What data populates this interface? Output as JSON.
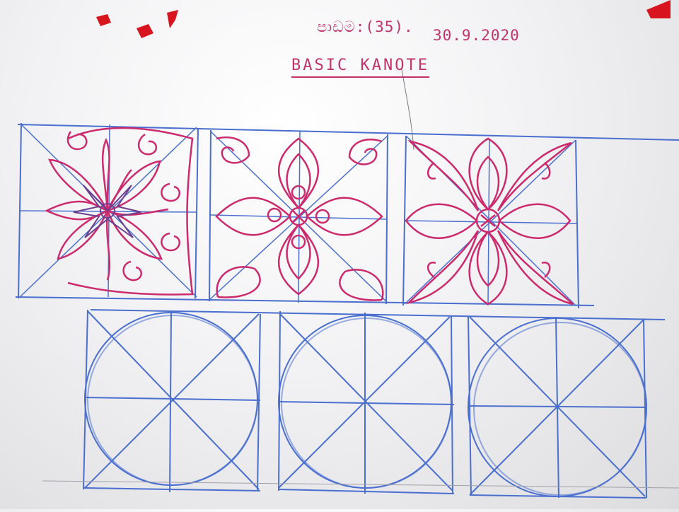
{
  "board": {
    "lesson_number": "පාඩම:(35).",
    "date": "30.9.2020",
    "title": "BASIC KANOTE"
  },
  "colors": {
    "guide_lines": "#4a6fd0",
    "motif_ink": "#cc2a6d",
    "magnet": "#d8141e",
    "board": "#f4f4f6"
  },
  "panels": {
    "finished": [
      "finished-motif-leaf-star",
      "finished-motif-lotus-cross",
      "finished-motif-rosette"
    ],
    "guides": [
      "guide-grid-1",
      "guide-grid-2",
      "guide-grid-3"
    ]
  }
}
